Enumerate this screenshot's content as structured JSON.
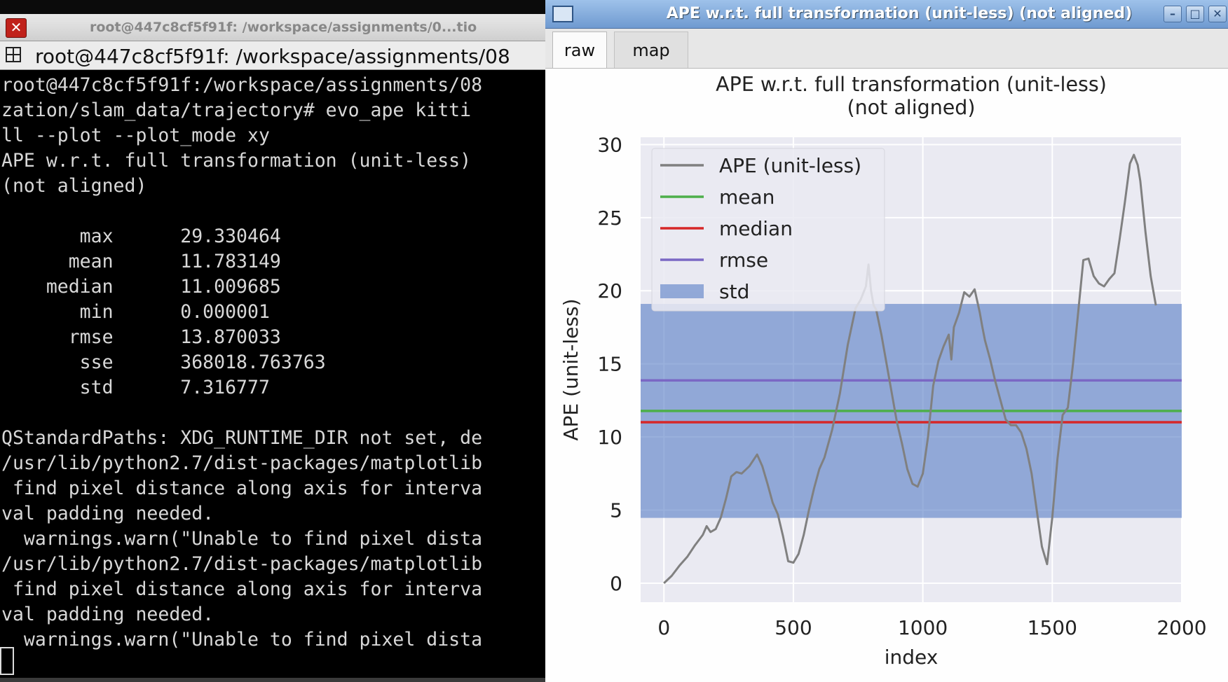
{
  "terminal": {
    "title": "root@447c8cf5f91f: /workspace/assignments/0...tio",
    "tab_label": "root@447c8cf5f91f: /workspace/assignments/08",
    "lines": [
      "root@447c8cf5f91f:/workspace/assignments/08",
      "zation/slam_data/trajectory# evo_ape kitti ",
      "ll --plot --plot_mode xy",
      "APE w.r.t. full transformation (unit-less)",
      "(not aligned)",
      "",
      "       max      29.330464",
      "      mean      11.783149",
      "    median      11.009685",
      "       min      0.000001",
      "      rmse      13.870033",
      "       sse      368018.763763",
      "       std      7.316777",
      "",
      "QStandardPaths: XDG_RUNTIME_DIR not set, de",
      "/usr/lib/python2.7/dist-packages/matplotlib",
      " find pixel distance along axis for interva",
      "val padding needed.",
      "  warnings.warn(\"Unable to find pixel dista",
      "/usr/lib/python2.7/dist-packages/matplotlib",
      " find pixel distance along axis for interva",
      "val padding needed.",
      "  warnings.warn(\"Unable to find pixel dista"
    ],
    "colors": {
      "background": "#000000",
      "text": "#d8d8d8"
    }
  },
  "plot_window": {
    "title": "APE w.r.t. full transformation (unit-less) (not aligned)",
    "icons": {
      "window": "window-icon",
      "minimize": "minimize-icon",
      "maximize": "maximize-icon",
      "close": "close-icon"
    },
    "tabs": [
      {
        "label": "raw",
        "active": true
      },
      {
        "label": "map",
        "active": false
      }
    ]
  },
  "chart_data": {
    "type": "line",
    "title": "APE w.r.t. full transformation (unit-less)\n(not aligned)",
    "xlabel": "index",
    "ylabel": "APE (unit-less)",
    "xlim": [
      -90,
      2000
    ],
    "ylim": [
      -1.3,
      30.5
    ],
    "xticks": [
      0,
      500,
      1000,
      1500,
      2000
    ],
    "yticks": [
      0,
      5,
      10,
      15,
      20,
      25,
      30
    ],
    "grid": true,
    "legend_position": "top-left",
    "legend": [
      {
        "label": "APE (unit-less)",
        "kind": "line",
        "color": "#808080"
      },
      {
        "label": "mean",
        "kind": "line",
        "color": "#4daf4a"
      },
      {
        "label": "median",
        "kind": "line",
        "color": "#d62728"
      },
      {
        "label": "rmse",
        "kind": "line",
        "color": "#7b68c4"
      },
      {
        "label": "std",
        "kind": "patch",
        "color": "#5b7fc7"
      }
    ],
    "stats": {
      "mean": 11.783149,
      "median": 11.009685,
      "rmse": 13.870033,
      "std": 7.316777
    },
    "series": [
      {
        "name": "APE (unit-less)",
        "x": [
          0,
          30,
          60,
          90,
          120,
          150,
          165,
          180,
          200,
          220,
          240,
          260,
          280,
          300,
          330,
          360,
          380,
          400,
          420,
          440,
          460,
          480,
          500,
          520,
          540,
          560,
          580,
          600,
          620,
          650,
          680,
          710,
          740,
          760,
          780,
          790,
          800,
          810,
          820,
          840,
          860,
          880,
          900,
          920,
          940,
          960,
          980,
          1000,
          1020,
          1040,
          1060,
          1080,
          1100,
          1110,
          1120,
          1140,
          1160,
          1180,
          1200,
          1220,
          1230,
          1240,
          1260,
          1280,
          1300,
          1320,
          1340,
          1360,
          1380,
          1400,
          1420,
          1440,
          1460,
          1480,
          1500,
          1520,
          1540,
          1560,
          1580,
          1600,
          1620,
          1640,
          1660,
          1680,
          1700,
          1720,
          1740,
          1760,
          1780,
          1800,
          1815,
          1830,
          1840,
          1860,
          1880,
          1900
        ],
        "values": [
          0.0,
          0.5,
          1.2,
          1.8,
          2.6,
          3.3,
          3.9,
          3.5,
          3.7,
          4.5,
          5.8,
          7.3,
          7.6,
          7.5,
          8.0,
          8.8,
          8.0,
          6.8,
          5.5,
          4.7,
          3.2,
          1.5,
          1.4,
          2.0,
          3.3,
          5.0,
          6.5,
          7.8,
          8.6,
          10.5,
          13.0,
          16.3,
          18.8,
          19.4,
          20.3,
          21.8,
          20.0,
          19.0,
          18.7,
          17.0,
          15.0,
          13.0,
          11.0,
          9.5,
          7.8,
          6.8,
          6.6,
          7.5,
          10.0,
          13.5,
          15.2,
          16.2,
          17.0,
          15.3,
          17.5,
          18.5,
          19.9,
          19.6,
          20.1,
          18.5,
          17.5,
          16.6,
          15.3,
          13.8,
          12.5,
          11.2,
          10.8,
          10.8,
          10.3,
          9.2,
          7.5,
          5.0,
          2.5,
          1.3,
          4.5,
          8.5,
          11.5,
          12.0,
          15.0,
          18.5,
          22.1,
          22.2,
          21.0,
          20.5,
          20.3,
          20.8,
          21.2,
          23.5,
          26.0,
          28.7,
          29.3,
          28.6,
          27.5,
          24.0,
          21.0,
          19.0
        ]
      }
    ]
  }
}
